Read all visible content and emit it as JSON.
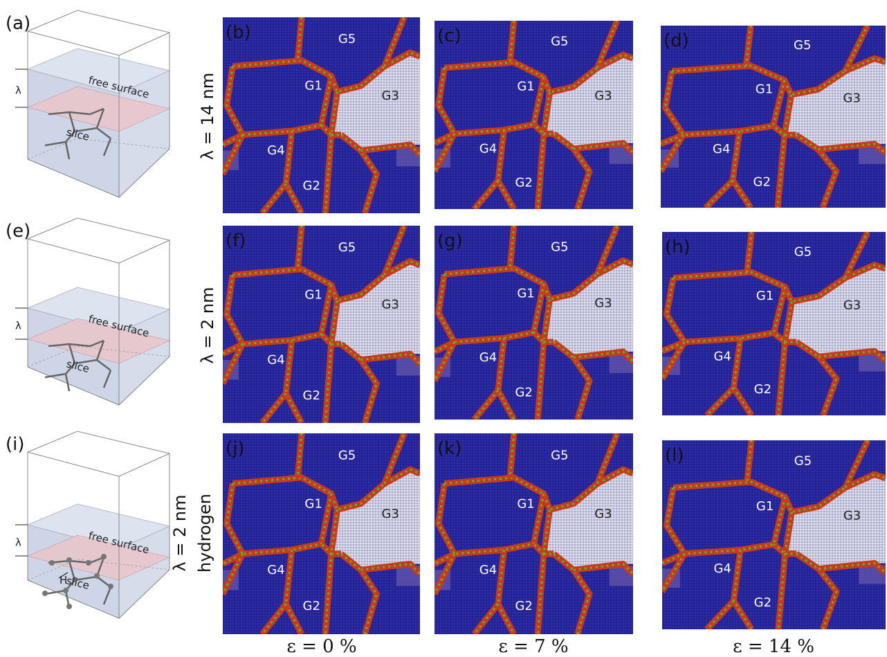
{
  "schematics": [
    {
      "label": "(a)",
      "free_surface": "free surface",
      "slice": "slice",
      "lambda": "λ"
    },
    {
      "label": "(e)",
      "free_surface": "free surface",
      "slice": "slice",
      "lambda": "λ"
    },
    {
      "label": "(i)",
      "free_surface": "free surface",
      "slice": "slice",
      "lambda": "λ",
      "hydrogen": "H"
    }
  ],
  "rows": [
    {
      "lines": [
        "λ = 14 nm"
      ]
    },
    {
      "lines": [
        "λ = 2 nm"
      ]
    },
    {
      "lines": [
        "λ = 2 nm",
        "hydrogen"
      ]
    }
  ],
  "columns": [
    "ε = 0 %",
    "ε = 7 %",
    "ε = 14 %"
  ],
  "panels": [
    [
      {
        "label": "(b)",
        "grains": [
          "G1",
          "G2",
          "G3",
          "G4",
          "G5"
        ]
      },
      {
        "label": "(c)",
        "grains": [
          "G1",
          "G2",
          "G3",
          "G4",
          "G5"
        ]
      },
      {
        "label": "(d)",
        "grains": [
          "G1",
          "G2",
          "G3",
          "G4",
          "G5"
        ]
      }
    ],
    [
      {
        "label": "(f)",
        "grains": [
          "G1",
          "G2",
          "G3",
          "G4",
          "G5"
        ]
      },
      {
        "label": "(g)",
        "grains": [
          "G1",
          "G2",
          "G3",
          "G4",
          "G5"
        ]
      },
      {
        "label": "(h)",
        "grains": [
          "G1",
          "G2",
          "G3",
          "G4",
          "G5"
        ]
      }
    ],
    [
      {
        "label": "(j)",
        "grains": [
          "G1",
          "G2",
          "G3",
          "G4",
          "G5"
        ]
      },
      {
        "label": "(k)",
        "grains": [
          "G1",
          "G2",
          "G3",
          "G4",
          "G5"
        ]
      },
      {
        "label": "(l)",
        "grains": [
          "G1",
          "G2",
          "G3",
          "G4",
          "G5"
        ]
      }
    ]
  ]
}
